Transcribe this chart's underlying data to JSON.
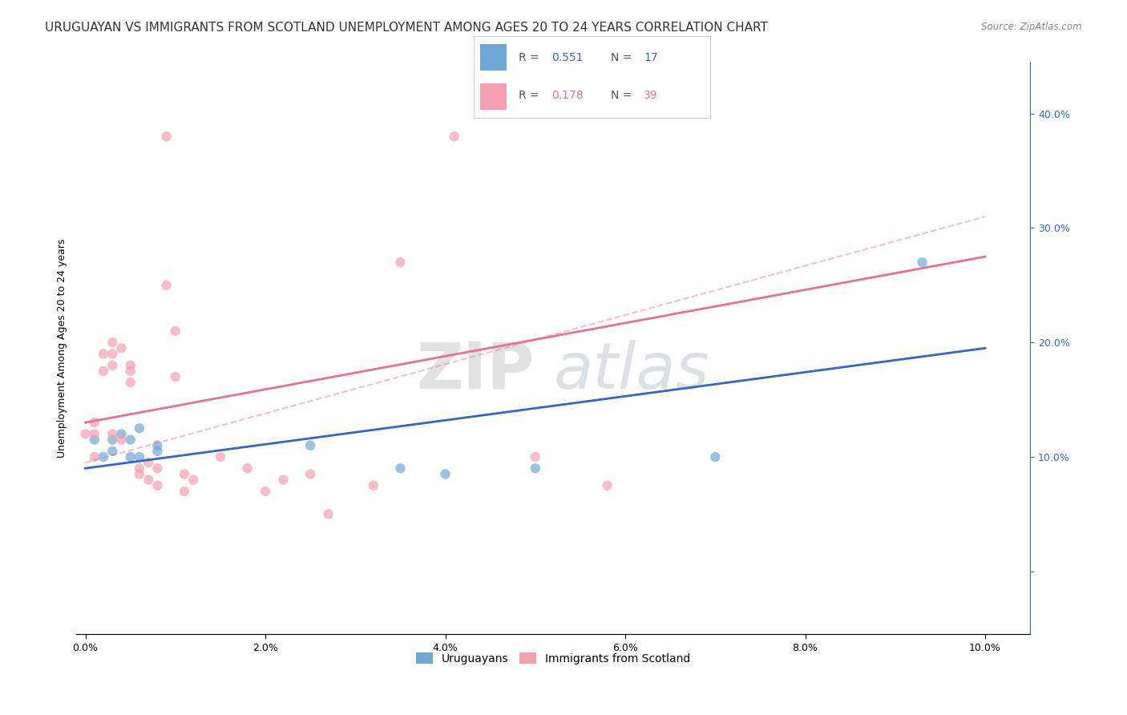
{
  "title": "URUGUAYAN VS IMMIGRANTS FROM SCOTLAND UNEMPLOYMENT AMONG AGES 20 TO 24 YEARS CORRELATION CHART",
  "source": "Source: ZipAtlas.com",
  "ylabel": "Unemployment Among Ages 20 to 24 years",
  "xticklabels": [
    "0.0%",
    "2.0%",
    "4.0%",
    "6.0%",
    "8.0%",
    "10.0%"
  ],
  "xticks": [
    0,
    0.02,
    0.04,
    0.06,
    0.08,
    0.1
  ],
  "yticklabels_right": [
    "",
    "10.0%",
    "20.0%",
    "30.0%",
    "40.0%"
  ],
  "yticks_right": [
    0,
    0.1,
    0.2,
    0.3,
    0.4
  ],
  "xlim": [
    -0.001,
    0.105
  ],
  "ylim": [
    -0.055,
    0.445
  ],
  "legend_label_blue": "Uruguayans",
  "legend_label_pink": "Immigrants from Scotland",
  "R_blue": "0.551",
  "N_blue": "17",
  "R_pink": "0.178",
  "N_pink": "39",
  "blue_color": "#6ea8d8",
  "pink_color": "#f4a0b0",
  "blue_line_color": "#3366cc",
  "pink_line_color": "#e87090",
  "watermark_zip": "ZIP",
  "watermark_atlas": "atlas",
  "blue_scatter_x": [
    0.001,
    0.002,
    0.003,
    0.003,
    0.004,
    0.005,
    0.005,
    0.006,
    0.006,
    0.008,
    0.008,
    0.025,
    0.035,
    0.04,
    0.05,
    0.07,
    0.093
  ],
  "blue_scatter_y": [
    0.115,
    0.1,
    0.115,
    0.105,
    0.12,
    0.115,
    0.1,
    0.125,
    0.1,
    0.105,
    0.11,
    0.11,
    0.09,
    0.085,
    0.09,
    0.1,
    0.27
  ],
  "pink_scatter_x": [
    0.0,
    0.001,
    0.001,
    0.001,
    0.002,
    0.002,
    0.003,
    0.003,
    0.003,
    0.003,
    0.004,
    0.004,
    0.005,
    0.005,
    0.005,
    0.006,
    0.006,
    0.007,
    0.007,
    0.008,
    0.008,
    0.009,
    0.009,
    0.01,
    0.01,
    0.011,
    0.011,
    0.012,
    0.015,
    0.018,
    0.02,
    0.022,
    0.025,
    0.027,
    0.032,
    0.035,
    0.041,
    0.05,
    0.058
  ],
  "pink_scatter_y": [
    0.12,
    0.12,
    0.13,
    0.1,
    0.175,
    0.19,
    0.12,
    0.18,
    0.19,
    0.2,
    0.115,
    0.195,
    0.165,
    0.18,
    0.175,
    0.085,
    0.09,
    0.08,
    0.095,
    0.09,
    0.075,
    0.25,
    0.38,
    0.17,
    0.21,
    0.085,
    0.07,
    0.08,
    0.1,
    0.09,
    0.07,
    0.08,
    0.085,
    0.05,
    0.075,
    0.27,
    0.38,
    0.1,
    0.075
  ],
  "blue_line_x": [
    0.0,
    0.1
  ],
  "blue_line_y": [
    0.09,
    0.195
  ],
  "pink_line_x": [
    0.0,
    0.1
  ],
  "pink_line_y": [
    0.13,
    0.275
  ],
  "pink_dash_line_x": [
    0.0,
    0.1
  ],
  "pink_dash_line_y": [
    0.095,
    0.31
  ],
  "background_color": "#ffffff",
  "grid_color": "#dddddd",
  "title_fontsize": 11,
  "axis_fontsize": 9,
  "scatter_size": 80
}
